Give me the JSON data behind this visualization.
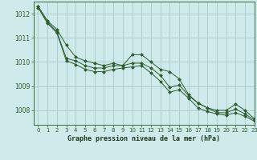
{
  "title": "Graphe pression niveau de la mer (hPa)",
  "background_color": "#ceeaea",
  "grid_color": "#aacaca",
  "line_color": "#2d5c2d",
  "marker_color": "#2d5c2d",
  "xlim": [
    -0.5,
    23
  ],
  "ylim": [
    1007.4,
    1012.5
  ],
  "yticks": [
    1008,
    1009,
    1010,
    1011,
    1012
  ],
  "xticks": [
    0,
    1,
    2,
    3,
    4,
    5,
    6,
    7,
    8,
    9,
    10,
    11,
    12,
    13,
    14,
    15,
    16,
    17,
    18,
    19,
    20,
    21,
    22,
    23
  ],
  "series": [
    [
      1012.3,
      1011.7,
      1011.35,
      1010.7,
      1010.2,
      1010.05,
      1009.95,
      1009.85,
      1009.95,
      1009.85,
      1010.3,
      1010.3,
      1010.0,
      1009.7,
      1009.6,
      1009.3,
      1008.65,
      1008.3,
      1008.1,
      1008.0,
      1008.0,
      1008.25,
      1008.0,
      1007.65
    ],
    [
      1012.3,
      1011.65,
      1011.25,
      1010.15,
      1010.05,
      1009.85,
      1009.75,
      1009.75,
      1009.85,
      1009.85,
      1009.95,
      1009.95,
      1009.75,
      1009.45,
      1008.95,
      1009.05,
      1008.6,
      1008.3,
      1008.1,
      1007.9,
      1007.9,
      1008.05,
      1007.85,
      1007.6
    ],
    [
      1012.25,
      1011.6,
      1011.2,
      1010.05,
      1009.9,
      1009.7,
      1009.6,
      1009.6,
      1009.7,
      1009.75,
      1009.8,
      1009.85,
      1009.55,
      1009.2,
      1008.75,
      1008.85,
      1008.5,
      1008.1,
      1007.95,
      1007.85,
      1007.8,
      1007.9,
      1007.75,
      1007.55
    ]
  ]
}
